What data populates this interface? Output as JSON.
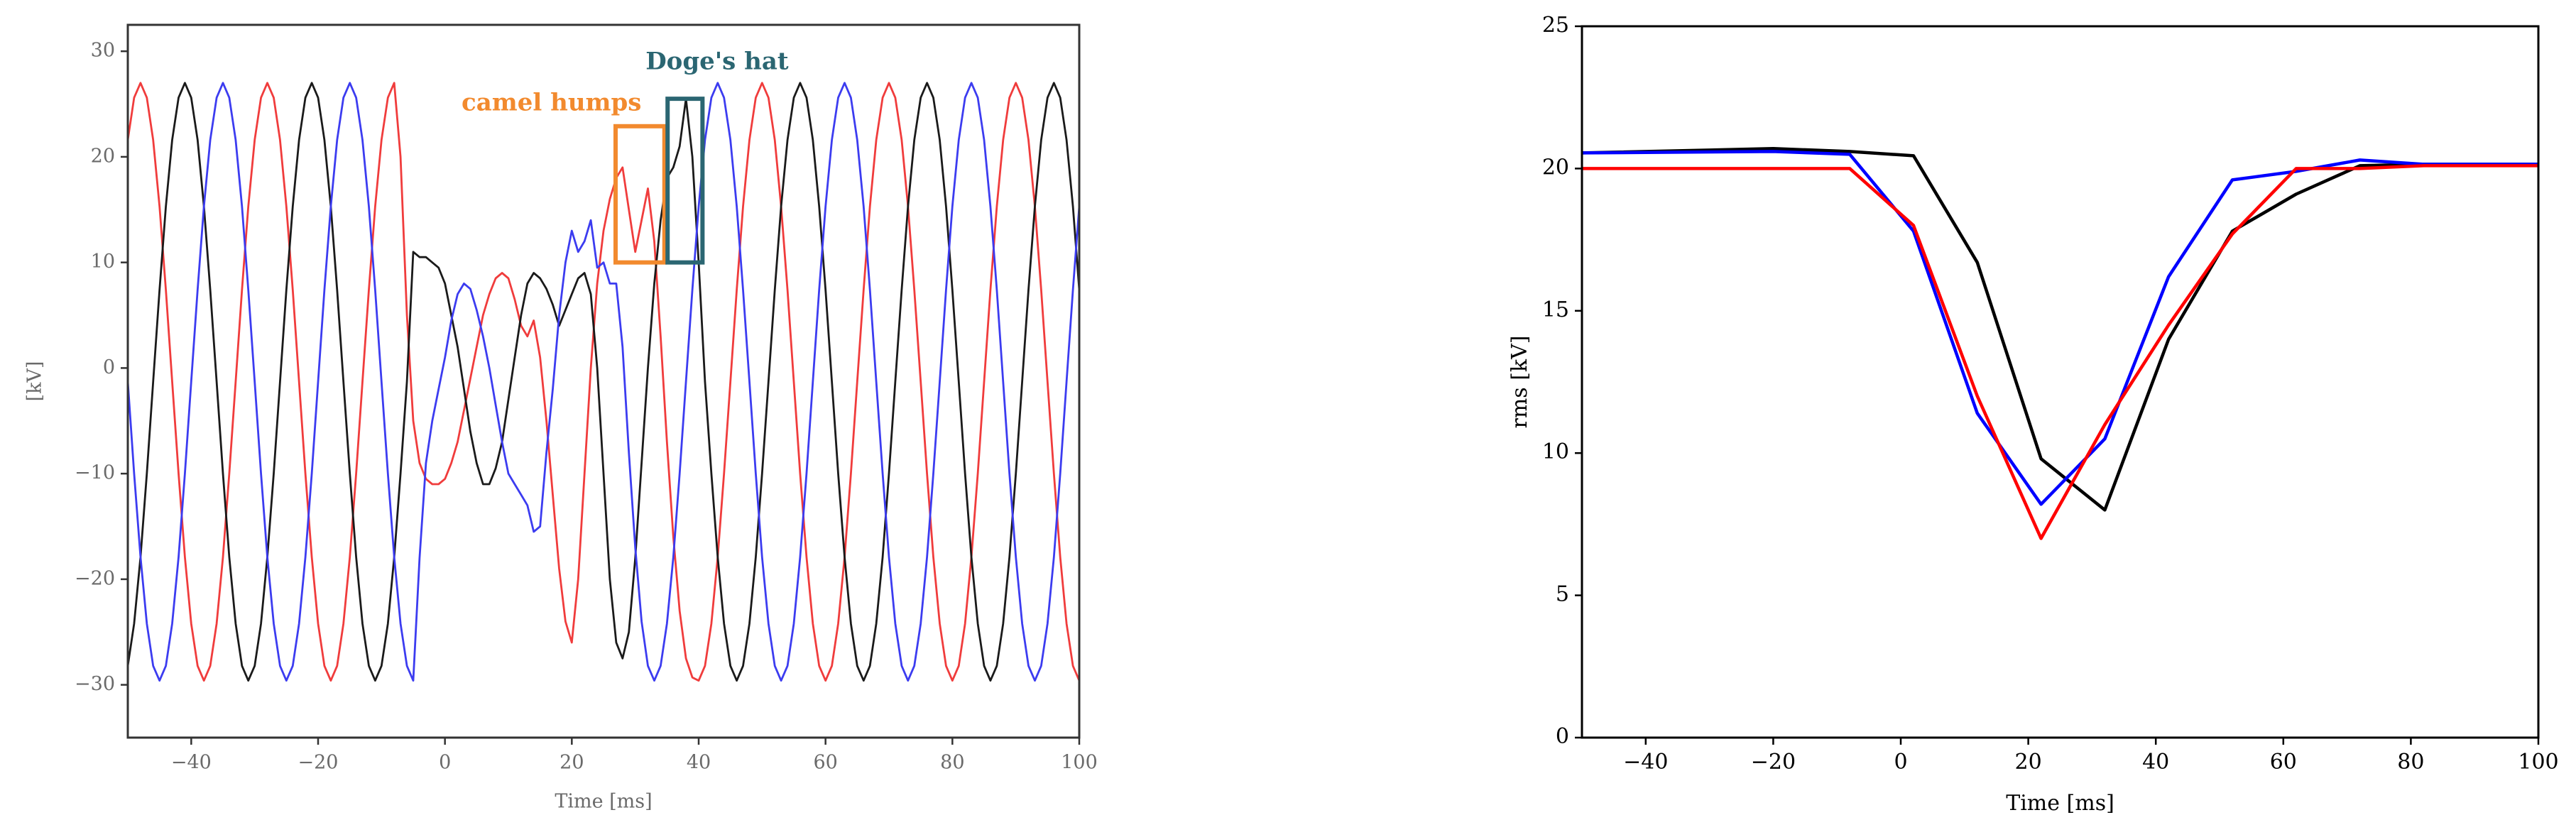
{
  "chart_data": [
    {
      "type": "line",
      "xlabel": "Time [ms]",
      "ylabel": "[kV]",
      "xlim": [
        -50,
        100
      ],
      "ylim": [
        -35,
        32.5
      ],
      "xticks": [
        {
          "value": -40,
          "label": "−40"
        },
        {
          "value": -20,
          "label": "−20"
        },
        0,
        20,
        40,
        60,
        80,
        100
      ],
      "yticks": [
        {
          "value": -30,
          "label": "−30"
        },
        {
          "value": -20,
          "label": "−20"
        },
        {
          "value": -10,
          "label": "−10"
        },
        0,
        10,
        20,
        30
      ],
      "annotations": [
        {
          "text": "camel humps",
          "color": "#f28a2e"
        },
        {
          "text": "Doge's hat",
          "color": "#2b6672"
        }
      ],
      "x": [
        -50,
        -49,
        -48,
        -47,
        -46,
        -45,
        -44,
        -43,
        -42,
        -41,
        -40,
        -39,
        -38,
        -37,
        -36,
        -35,
        -34,
        -33,
        -32,
        -31,
        -30,
        -29,
        -28,
        -27,
        -26,
        -25,
        -24,
        -23,
        -22,
        -21,
        -20,
        -19,
        -18,
        -17,
        -16,
        -15,
        -14,
        -13,
        -12,
        -11,
        -10,
        -9,
        -8,
        -7,
        -6,
        -5,
        -4,
        -3,
        -2,
        -1,
        0,
        1,
        2,
        3,
        4,
        5,
        6,
        7,
        8,
        9,
        10,
        11,
        12,
        13,
        14,
        15,
        16,
        17,
        18,
        19,
        20,
        21,
        22,
        23,
        24,
        25,
        26,
        27,
        28,
        29,
        30,
        31,
        32,
        33,
        34,
        35,
        36,
        37,
        38,
        39,
        40,
        41,
        42,
        43,
        44,
        45,
        46,
        47,
        48,
        49,
        50,
        51,
        52,
        53,
        54,
        55,
        56,
        57,
        58,
        59,
        60,
        61,
        62,
        63,
        64,
        65,
        66,
        67,
        68,
        69,
        70,
        71,
        72,
        73,
        74,
        75,
        76,
        77,
        78,
        79,
        80,
        81,
        82,
        83,
        84,
        85,
        86,
        87,
        88,
        89,
        90,
        91,
        92,
        93,
        94,
        95,
        96,
        97,
        98,
        99,
        100
      ],
      "series": [
        {
          "color": "#f03c3c",
          "values": [
            21.6,
            25.6,
            27.0,
            25.6,
            21.6,
            15.3,
            7.4,
            -1.3,
            -10.0,
            -17.9,
            -24.2,
            -28.2,
            -29.6,
            -28.2,
            -24.2,
            -17.9,
            -10.0,
            -1.3,
            7.4,
            15.3,
            21.6,
            25.6,
            27.0,
            25.6,
            21.6,
            15.3,
            7.4,
            -1.3,
            -10.0,
            -17.9,
            -24.2,
            -28.2,
            -29.6,
            -28.2,
            -24.2,
            -17.9,
            -10.0,
            -1.3,
            7.4,
            15.3,
            21.6,
            25.6,
            27.0,
            20,
            5,
            -5,
            -9,
            -10.5,
            -11,
            -11,
            -10.5,
            -9,
            -7,
            -4,
            -1,
            2,
            5,
            7,
            8.5,
            9,
            8.5,
            6.5,
            4,
            3,
            4.5,
            1,
            -5,
            -12,
            -19,
            -24,
            -26,
            -20,
            -10,
            0,
            8,
            13,
            16,
            18,
            19,
            15,
            11,
            14,
            17,
            12,
            3,
            -7,
            -16,
            -23,
            -27.5,
            -29.3,
            -29.6,
            -28.2,
            -24.2,
            -17.9,
            -10.0,
            -1.3,
            7.4,
            15.3,
            21.6,
            25.6,
            27.0,
            25.6,
            21.6,
            15.3,
            7.4,
            -1.3,
            -10.0,
            -17.9,
            -24.2,
            -28.2,
            -29.6,
            -28.2,
            -24.2,
            -17.9,
            -10.0,
            -1.3,
            7.4,
            15.3,
            21.6,
            25.6,
            27.0,
            25.6,
            21.6,
            15.3,
            7.4,
            -1.3,
            -10.0,
            -17.9,
            -24.2,
            -28.2,
            -29.6,
            -28.2,
            -24.2,
            -17.9,
            -10.0,
            -1.3,
            7.4,
            15.3,
            21.6,
            25.6,
            27.0,
            25.6,
            21.6,
            15.3,
            7.4,
            -1.3,
            -10.0,
            -17.9,
            -24.2,
            -28.2,
            -29.6
          ]
        },
        {
          "color": "#1a1a1a",
          "values": [
            -28.2,
            -24.2,
            -17.9,
            -10.0,
            -1.3,
            7.4,
            15.3,
            21.6,
            25.6,
            27.0,
            25.6,
            21.6,
            15.3,
            7.4,
            -1.3,
            -10.0,
            -17.9,
            -24.2,
            -28.2,
            -29.6,
            -28.2,
            -24.2,
            -17.9,
            -10.0,
            -1.3,
            7.4,
            15.3,
            21.6,
            25.6,
            27.0,
            25.6,
            21.6,
            15.3,
            7.4,
            -1.3,
            -10.0,
            -17.9,
            -24.2,
            -28.2,
            -29.6,
            -28.2,
            -24.2,
            -17.9,
            -10.0,
            -1.3,
            11,
            10.5,
            10.5,
            10,
            9.5,
            8,
            5,
            2,
            -2,
            -6,
            -9,
            -11,
            -11,
            -9.5,
            -7,
            -3,
            1,
            5,
            8,
            9,
            8.5,
            7.5,
            6,
            4,
            5.5,
            7,
            8.5,
            9,
            7,
            0,
            -10,
            -20,
            -26,
            -27.5,
            -25,
            -18,
            -9,
            0,
            8,
            14,
            18,
            19,
            21,
            25.5,
            20,
            10,
            -1.3,
            -10.0,
            -17.9,
            -24.2,
            -28.2,
            -29.6,
            -28.2,
            -24.2,
            -17.9,
            -10.0,
            -1.3,
            7.4,
            15.3,
            21.6,
            25.6,
            27.0,
            25.6,
            21.6,
            15.3,
            7.4,
            -1.3,
            -10.0,
            -17.9,
            -24.2,
            -28.2,
            -29.6,
            -28.2,
            -24.2,
            -17.9,
            -10.0,
            -1.3,
            7.4,
            15.3,
            21.6,
            25.6,
            27.0,
            25.6,
            21.6,
            15.3,
            7.4,
            -1.3,
            -10.0,
            -17.9,
            -24.2,
            -28.2,
            -29.6,
            -28.2,
            -24.2,
            -17.9,
            -10.0,
            -1.3,
            7.4,
            15.3,
            21.6,
            25.6,
            27.0,
            25.6,
            21.6,
            15.3,
            7.4
          ]
        },
        {
          "color": "#3c3cf0",
          "values": [
            -1.3,
            -10.0,
            -17.9,
            -24.2,
            -28.2,
            -29.6,
            -28.2,
            -24.2,
            -17.9,
            -10.0,
            -1.3,
            7.4,
            15.3,
            21.6,
            25.6,
            27.0,
            25.6,
            21.6,
            15.3,
            7.4,
            -1.3,
            -10.0,
            -17.9,
            -24.2,
            -28.2,
            -29.6,
            -28.2,
            -24.2,
            -17.9,
            -10.0,
            -1.3,
            7.4,
            15.3,
            21.6,
            25.6,
            27.0,
            25.6,
            21.6,
            15.3,
            7.4,
            -1.3,
            -10.0,
            -17.9,
            -24.2,
            -28.2,
            -29.6,
            -18,
            -9,
            -5,
            -2,
            1,
            4.5,
            7,
            8,
            7.5,
            5.5,
            3,
            0,
            -3.5,
            -7,
            -10,
            -11,
            -12,
            -13,
            -15.5,
            -15,
            -8,
            -2,
            5,
            10,
            13,
            11,
            12,
            14,
            9.5,
            10,
            8,
            8,
            2,
            -8,
            -17,
            -24,
            -28.2,
            -29.6,
            -28.2,
            -24.2,
            -17.9,
            -10.0,
            -1.3,
            7.4,
            15.3,
            21.6,
            25.6,
            27.0,
            25.6,
            21.6,
            15.3,
            7.4,
            -1.3,
            -10.0,
            -17.9,
            -24.2,
            -28.2,
            -29.6,
            -28.2,
            -24.2,
            -17.9,
            -10.0,
            -1.3,
            7.4,
            15.3,
            21.6,
            25.6,
            27.0,
            25.6,
            21.6,
            15.3,
            7.4,
            -1.3,
            -10.0,
            -17.9,
            -24.2,
            -28.2,
            -29.6,
            -28.2,
            -24.2,
            -17.9,
            -10.0,
            -1.3,
            7.4,
            15.3,
            21.6,
            25.6,
            27.0,
            25.6,
            21.6,
            15.3,
            7.4,
            -1.3,
            -10.0,
            -17.9,
            -24.2,
            -28.2,
            -29.6,
            -28.2,
            -24.2,
            -17.9,
            -10.0,
            -1.3,
            7.4,
            15.3
          ]
        }
      ]
    },
    {
      "type": "line",
      "xlabel": "Time [ms]",
      "ylabel": "rms [kV]",
      "xlim": [
        -50,
        100
      ],
      "ylim": [
        0,
        25
      ],
      "xticks": [
        {
          "value": -40,
          "label": "−40"
        },
        {
          "value": -20,
          "label": "−20"
        },
        0,
        20,
        40,
        60,
        80,
        100
      ],
      "yticks": [
        0,
        5,
        10,
        15,
        20,
        25
      ],
      "x": [
        -50,
        -20,
        -8,
        2,
        12,
        22,
        32,
        42,
        52,
        62,
        72,
        82,
        100
      ],
      "series": [
        {
          "color": "#000000",
          "values": [
            20.55,
            20.7,
            20.6,
            20.45,
            16.7,
            9.8,
            8.0,
            14.0,
            17.8,
            19.1,
            20.1,
            20.15,
            20.15
          ]
        },
        {
          "color": "#0000ff",
          "values": [
            20.55,
            20.6,
            20.5,
            17.8,
            11.4,
            8.2,
            10.5,
            16.2,
            19.6,
            19.9,
            20.3,
            20.15,
            20.15
          ]
        },
        {
          "color": "#ff0000",
          "values": [
            20.0,
            20.0,
            20.0,
            18.0,
            12.0,
            7.0,
            11.0,
            14.5,
            17.7,
            20.0,
            20.0,
            20.1,
            20.1
          ]
        }
      ]
    }
  ]
}
